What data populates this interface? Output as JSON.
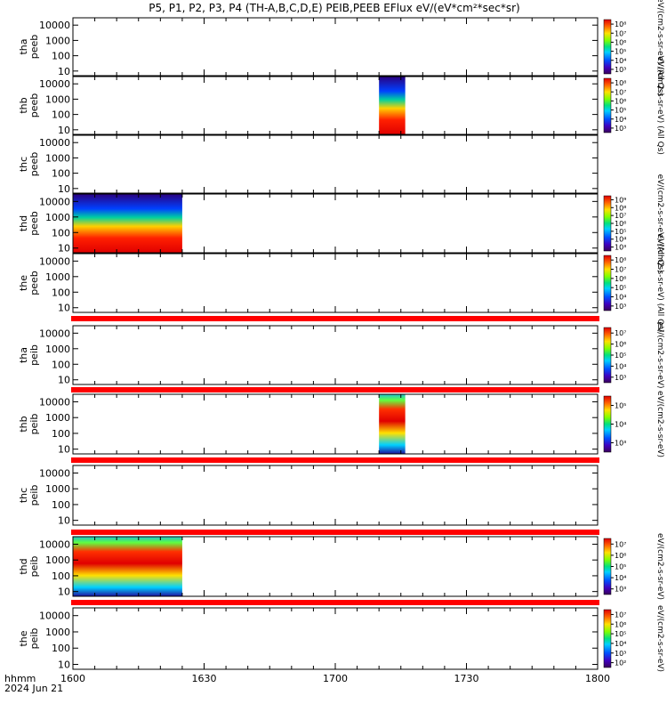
{
  "chart_data": {
    "type": "heatmap",
    "title": "P5, P1, P2, P3, P4 (TH-A,B,C,D,E) PEIB,PEEB EFlux eV/(eV*cm²*sec*sr)",
    "x_label_line1": "hhmm",
    "x_label_line2": "2024 Jun 21",
    "x_ticks": [
      "1600",
      "1630",
      "1700",
      "1730",
      "1800"
    ],
    "x_range_minutes": [
      0,
      120
    ],
    "y_scale": "log",
    "y_range_eV": [
      5,
      30000
    ],
    "y_tick_labels": [
      "10",
      "100",
      "1000",
      "10000"
    ],
    "panels": [
      {
        "probe": "tha",
        "species": "peeb",
        "data_spans_minutes": [],
        "cbar_ticks": [
          "10³",
          "10⁴",
          "10⁵",
          "10⁶",
          "10⁷",
          "10⁸"
        ],
        "cbar_label": "eV/(cm2-s-sr-eV) (All Qs)"
      },
      {
        "probe": "thb",
        "species": "peeb",
        "data_spans_minutes": [
          [
            70,
            76
          ]
        ],
        "cbar_ticks": [
          "10³",
          "10⁴",
          "10⁵",
          "10⁶",
          "10⁷",
          "10⁸"
        ],
        "cbar_label": "eV/(cm2-s-sr-eV) (All Qs)"
      },
      {
        "probe": "thc",
        "species": "peeb",
        "data_spans_minutes": [],
        "cbar_ticks": [],
        "cbar_label": "eV/(cm2-s-sr-eV) (All Qs)"
      },
      {
        "probe": "thd",
        "species": "peeb",
        "data_spans_minutes": [
          [
            0,
            25
          ]
        ],
        "cbar_ticks": [
          "10³",
          "10⁴",
          "10⁵",
          "10⁶",
          "10⁷",
          "10⁸",
          "10⁹"
        ],
        "cbar_label": "eV/(cm2-s-sr-eV) (All Qs)"
      },
      {
        "probe": "the",
        "species": "peeb",
        "data_spans_minutes": [],
        "cbar_ticks": [
          "10³",
          "10⁴",
          "10⁵",
          "10⁶",
          "10⁷",
          "10⁸"
        ],
        "cbar_label": "eV/(cm2-s-sr-eV) (All Qs)"
      },
      {
        "probe": "tha",
        "species": "peib",
        "data_spans_minutes": [],
        "cbar_ticks": [
          "10³",
          "10⁴",
          "10⁵",
          "10⁶",
          "10⁷"
        ],
        "cbar_label": "eV/(cm2-s-sr-eV)"
      },
      {
        "probe": "thb",
        "species": "peib",
        "data_spans_minutes": [
          [
            70,
            76
          ]
        ],
        "cbar_ticks": [
          "10³",
          "10⁴",
          "10⁵"
        ],
        "cbar_label": "eV/(cm2-s-sr-eV)"
      },
      {
        "probe": "thc",
        "species": "peib",
        "data_spans_minutes": [],
        "cbar_ticks": [],
        "cbar_label": "eV/(cm2-s-sr-eV)"
      },
      {
        "probe": "thd",
        "species": "peib",
        "data_spans_minutes": [
          [
            0,
            25
          ]
        ],
        "cbar_ticks": [
          "10³",
          "10⁴",
          "10⁵",
          "10⁶",
          "10⁷"
        ],
        "cbar_label": "eV/(cm2-s-sr-eV)"
      },
      {
        "probe": "the",
        "species": "peib",
        "data_spans_minutes": [],
        "cbar_ticks": [
          "10²",
          "10³",
          "10⁴",
          "10⁵",
          "10⁶",
          "10⁷"
        ],
        "cbar_label": "eV/(cm2-s-sr-eV)"
      }
    ],
    "colors": {
      "status_bar": "#ff0000",
      "axes": "#000000",
      "background": "#ffffff"
    }
  }
}
